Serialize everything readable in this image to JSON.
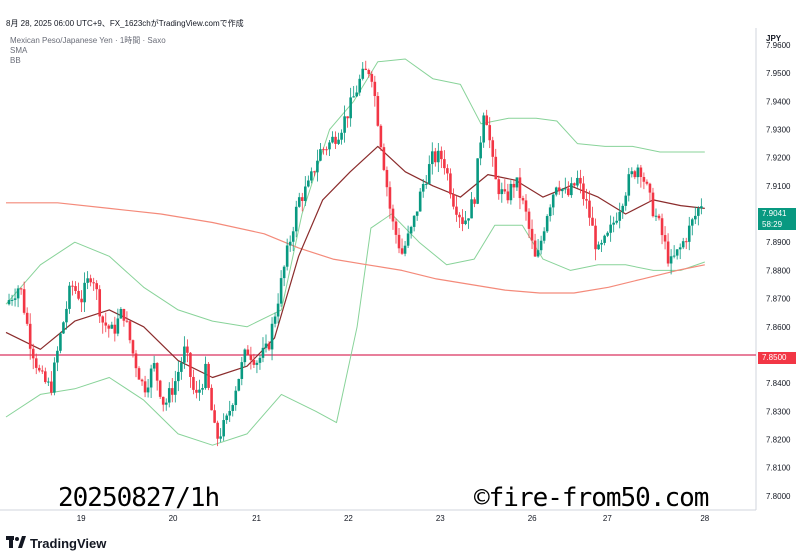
{
  "header": {
    "title_line": "8月 28, 2025 06:00 UTC+9、FX_1623chがTradingView.comで作成",
    "symbol": "Mexican Peso/Japanese Yen · 1時間 · Saxo",
    "indicator_1": "SMA",
    "indicator_2": "BB"
  },
  "axis": {
    "currency": "JPY",
    "price_ticks": [
      "7.9600",
      "7.9500",
      "7.9400",
      "7.9300",
      "7.9200",
      "7.9100",
      "7.9000",
      "7.8900",
      "7.8800",
      "7.8700",
      "7.8600",
      "7.8500",
      "7.8400",
      "7.8300",
      "7.8200",
      "7.8100",
      "7.8000"
    ],
    "date_ticks": [
      "19",
      "20",
      "21",
      "22",
      "23",
      "26",
      "27",
      "28"
    ]
  },
  "last_price": {
    "value": "7.9041",
    "countdown": "58:29"
  },
  "level_line": {
    "value": "7.8500"
  },
  "overlay": {
    "left_text": "20250827/1h",
    "right_text": "©fire-from50.com"
  },
  "footer": {
    "brand": "TradingView"
  },
  "colors": {
    "up": "#089981",
    "down": "#f23645",
    "sma_short": "#8b2c2c",
    "sma_long": "#f48a7a",
    "bb": "#88d399",
    "level": "#e0557a"
  },
  "chart_data": {
    "type": "candlestick",
    "title": "Mexican Peso/Japanese Yen · 1時間 · Saxo",
    "xlabel": "",
    "ylabel": "JPY",
    "ylim": [
      7.795,
      7.966
    ],
    "x_categories": [
      "19",
      "20",
      "21",
      "22",
      "23",
      "26",
      "27",
      "28"
    ],
    "horizontal_line": 7.85,
    "last_price": 7.9041,
    "close_path": [
      [
        0,
        7.868
      ],
      [
        0.4,
        7.875
      ],
      [
        0.7,
        7.855
      ],
      [
        1.0,
        7.842
      ],
      [
        1.3,
        7.838
      ],
      [
        1.6,
        7.858
      ],
      [
        1.9,
        7.875
      ],
      [
        2.2,
        7.87
      ],
      [
        2.5,
        7.88
      ],
      [
        2.8,
        7.862
      ],
      [
        3.1,
        7.858
      ],
      [
        3.4,
        7.866
      ],
      [
        3.7,
        7.85
      ],
      [
        4.0,
        7.838
      ],
      [
        4.3,
        7.846
      ],
      [
        4.6,
        7.832
      ],
      [
        4.9,
        7.84
      ],
      [
        5.2,
        7.852
      ],
      [
        5.5,
        7.834
      ],
      [
        5.8,
        7.844
      ],
      [
        6.1,
        7.82
      ],
      [
        6.4,
        7.826
      ],
      [
        6.7,
        7.84
      ],
      [
        7.0,
        7.852
      ],
      [
        7.3,
        7.848
      ],
      [
        7.6,
        7.852
      ],
      [
        7.9,
        7.87
      ],
      [
        8.2,
        7.888
      ],
      [
        8.5,
        7.905
      ],
      [
        8.8,
        7.91
      ],
      [
        9.1,
        7.922
      ],
      [
        9.4,
        7.925
      ],
      [
        9.7,
        7.93
      ],
      [
        10.0,
        7.938
      ],
      [
        10.3,
        7.948
      ],
      [
        10.6,
        7.952
      ],
      [
        10.9,
        7.925
      ],
      [
        11.2,
        7.898
      ],
      [
        11.5,
        7.886
      ],
      [
        11.8,
        7.895
      ],
      [
        12.1,
        7.91
      ],
      [
        12.4,
        7.92
      ],
      [
        12.7,
        7.92
      ],
      [
        13.0,
        7.905
      ],
      [
        13.3,
        7.897
      ],
      [
        13.6,
        7.905
      ],
      [
        13.9,
        7.94
      ],
      [
        14.2,
        7.912
      ],
      [
        14.5,
        7.905
      ],
      [
        14.8,
        7.912
      ],
      [
        15.1,
        7.9
      ],
      [
        15.4,
        7.882
      ],
      [
        15.7,
        7.9
      ],
      [
        16.0,
        7.912
      ],
      [
        16.3,
        7.906
      ],
      [
        16.6,
        7.912
      ],
      [
        16.9,
        7.902
      ],
      [
        17.2,
        7.886
      ],
      [
        17.5,
        7.892
      ],
      [
        17.8,
        7.902
      ],
      [
        18.1,
        7.912
      ],
      [
        18.4,
        7.918
      ],
      [
        18.7,
        7.905
      ],
      [
        19.0,
        7.895
      ],
      [
        19.3,
        7.882
      ],
      [
        19.6,
        7.888
      ],
      [
        19.9,
        7.896
      ],
      [
        20.2,
        7.904
      ]
    ],
    "sma_short": [
      [
        0,
        7.858
      ],
      [
        1,
        7.852
      ],
      [
        2,
        7.862
      ],
      [
        3,
        7.866
      ],
      [
        4,
        7.86
      ],
      [
        5,
        7.848
      ],
      [
        6,
        7.842
      ],
      [
        7,
        7.846
      ],
      [
        7.8,
        7.856
      ],
      [
        8.5,
        7.885
      ],
      [
        9.2,
        7.905
      ],
      [
        10.0,
        7.915
      ],
      [
        10.8,
        7.924
      ],
      [
        11.6,
        7.915
      ],
      [
        12.4,
        7.91
      ],
      [
        13.2,
        7.906
      ],
      [
        14.0,
        7.914
      ],
      [
        14.8,
        7.912
      ],
      [
        15.6,
        7.906
      ],
      [
        16.4,
        7.91
      ],
      [
        17.2,
        7.906
      ],
      [
        18.0,
        7.9
      ],
      [
        18.8,
        7.905
      ],
      [
        19.6,
        7.903
      ],
      [
        20.3,
        7.902
      ]
    ],
    "sma_long": [
      [
        0,
        7.904
      ],
      [
        1.5,
        7.904
      ],
      [
        3,
        7.902
      ],
      [
        4.5,
        7.9
      ],
      [
        6,
        7.897
      ],
      [
        7.5,
        7.893
      ],
      [
        8.5,
        7.888
      ],
      [
        9.5,
        7.884
      ],
      [
        10.5,
        7.882
      ],
      [
        11.5,
        7.88
      ],
      [
        12.5,
        7.877
      ],
      [
        13.5,
        7.875
      ],
      [
        14.5,
        7.873
      ],
      [
        15.5,
        7.872
      ],
      [
        16.5,
        7.872
      ],
      [
        17.5,
        7.874
      ],
      [
        18.5,
        7.877
      ],
      [
        19.5,
        7.88
      ],
      [
        20.3,
        7.882
      ]
    ],
    "bb_upper": [
      [
        0,
        7.868
      ],
      [
        1,
        7.882
      ],
      [
        2,
        7.89
      ],
      [
        3,
        7.885
      ],
      [
        4,
        7.874
      ],
      [
        5,
        7.866
      ],
      [
        6,
        7.862
      ],
      [
        7,
        7.86
      ],
      [
        8,
        7.866
      ],
      [
        8.6,
        7.9
      ],
      [
        9.4,
        7.93
      ],
      [
        10.1,
        7.94
      ],
      [
        10.8,
        7.954
      ],
      [
        11.6,
        7.955
      ],
      [
        12.4,
        7.948
      ],
      [
        13.2,
        7.946
      ],
      [
        13.8,
        7.932
      ],
      [
        14.6,
        7.934
      ],
      [
        15.4,
        7.934
      ],
      [
        16.0,
        7.933
      ],
      [
        16.6,
        7.925
      ],
      [
        17.4,
        7.924
      ],
      [
        18.2,
        7.924
      ],
      [
        19.0,
        7.922
      ],
      [
        19.6,
        7.922
      ],
      [
        20.3,
        7.922
      ]
    ],
    "bb_lower": [
      [
        0,
        7.828
      ],
      [
        1,
        7.836
      ],
      [
        2,
        7.838
      ],
      [
        3,
        7.842
      ],
      [
        4,
        7.834
      ],
      [
        5,
        7.822
      ],
      [
        6,
        7.818
      ],
      [
        7,
        7.822
      ],
      [
        8,
        7.836
      ],
      [
        9.0,
        7.83
      ],
      [
        9.6,
        7.826
      ],
      [
        10.2,
        7.86
      ],
      [
        10.6,
        7.895
      ],
      [
        11.2,
        7.9
      ],
      [
        12.0,
        7.89
      ],
      [
        12.8,
        7.882
      ],
      [
        13.6,
        7.884
      ],
      [
        14.2,
        7.896
      ],
      [
        15.0,
        7.896
      ],
      [
        15.6,
        7.884
      ],
      [
        16.4,
        7.88
      ],
      [
        17.2,
        7.882
      ],
      [
        18.0,
        7.882
      ],
      [
        18.8,
        7.88
      ],
      [
        19.6,
        7.88
      ],
      [
        20.3,
        7.883
      ]
    ]
  }
}
